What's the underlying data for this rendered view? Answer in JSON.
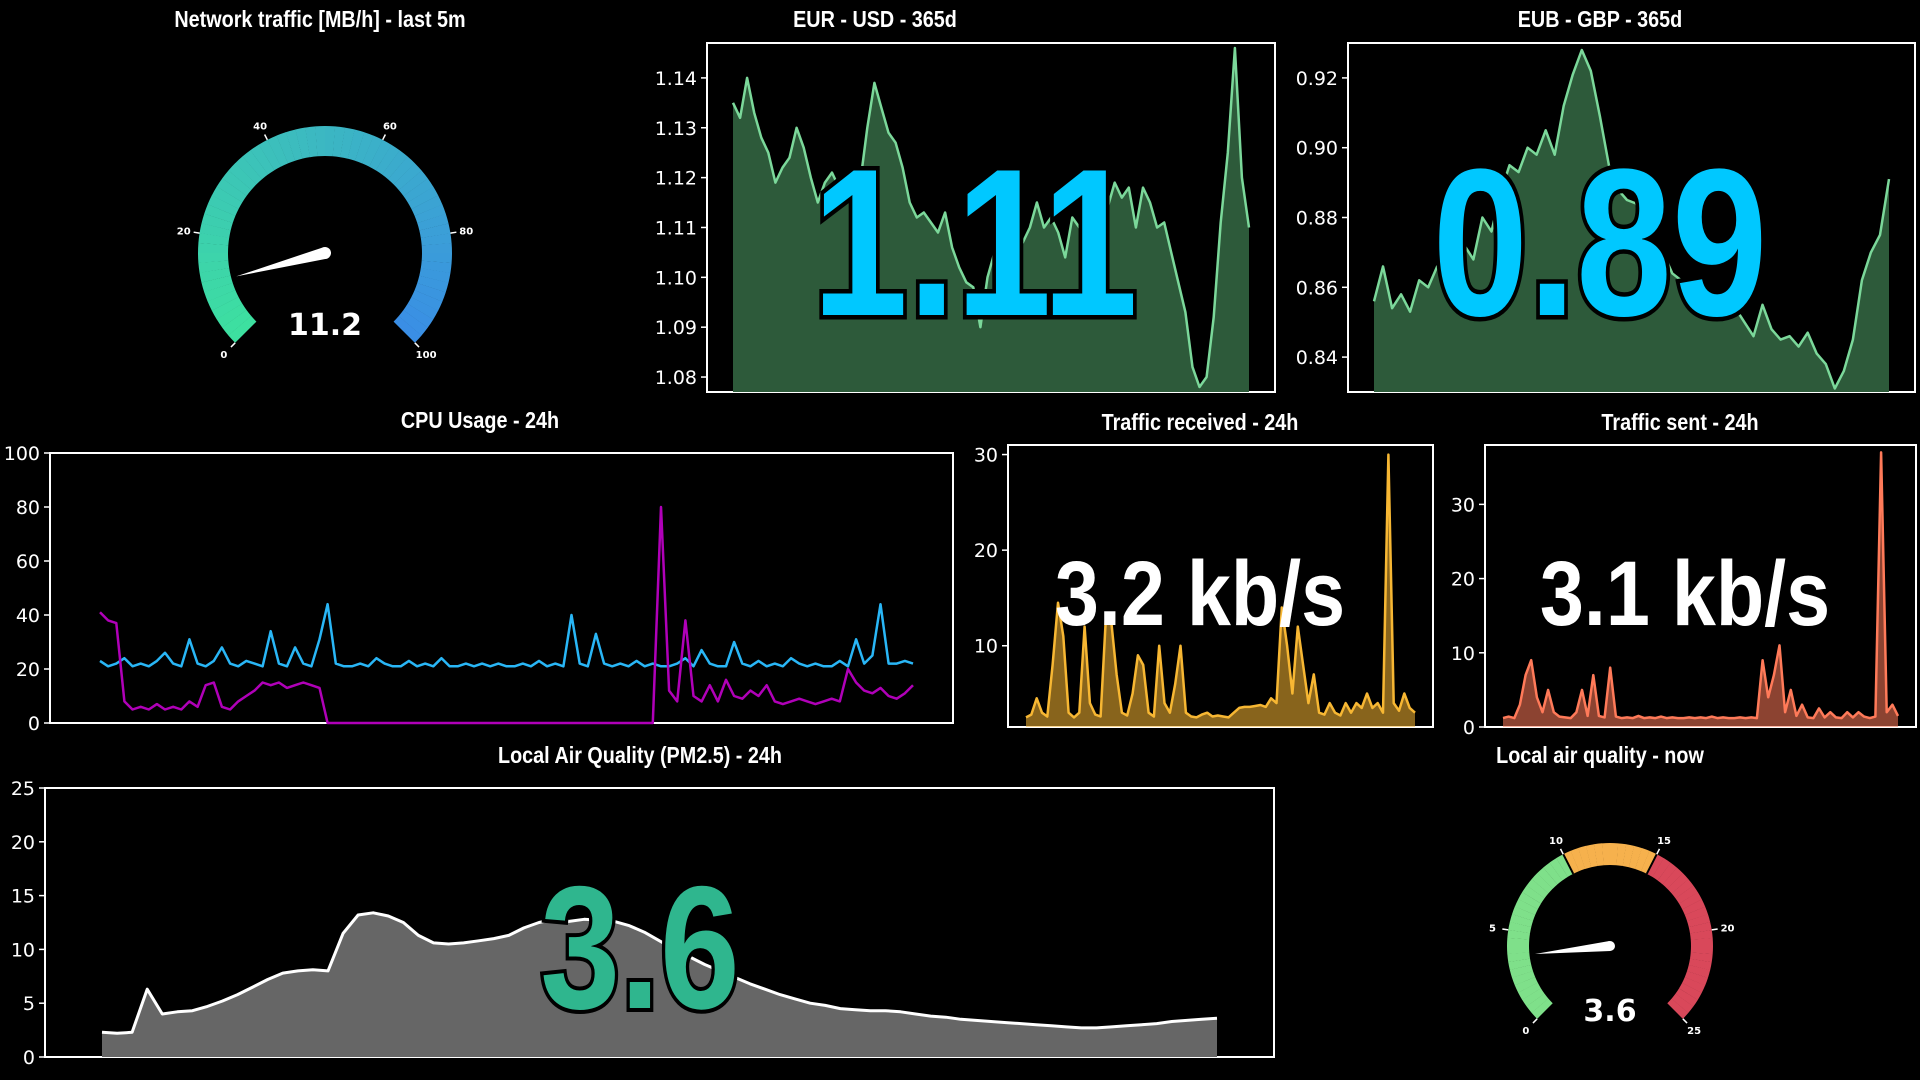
{
  "colors": {
    "background": "#000000",
    "axes": "#ffffff",
    "fx_line": "#7bd89a",
    "fx_fill": "#2d5a3a",
    "fx_value": "#00c8ff",
    "cpu_series_1": "#29b6f6",
    "cpu_series_2": "#b000b8",
    "received_line": "#f7b733",
    "sent_line": "#ff7a59",
    "aq_line": "#ffffff",
    "aq_fill": "#666666",
    "aq_value": "#2fb68e",
    "gauge_traffic_start": "#3de0a0",
    "gauge_traffic_end": "#3a8de6",
    "gauge_aq_green": "#7fe08a",
    "gauge_aq_orange": "#f6b14d",
    "gauge_aq_red": "#d9485a"
  },
  "gauges": {
    "network": {
      "title": "Network traffic [MB/h] - last 5m",
      "value": 11.2,
      "value_label": "11.2",
      "min": 0,
      "max": 100,
      "tick_labels": [
        "0",
        "20",
        "40",
        "60",
        "80",
        "100"
      ]
    },
    "air": {
      "title": "Local air quality - now",
      "value": 3.6,
      "value_label": "3.6",
      "min": 0,
      "max": 25,
      "tick_labels": [
        "0",
        "5",
        "10",
        "15",
        "20",
        "25"
      ],
      "bands": [
        {
          "from": 0,
          "to": 10,
          "color": "#7fe08a"
        },
        {
          "from": 10,
          "to": 15,
          "color": "#f6b14d"
        },
        {
          "from": 15,
          "to": 25,
          "color": "#d9485a"
        }
      ]
    }
  },
  "overlays": {
    "eur_usd": "1.11",
    "eur_gbp": "0.89",
    "received": "3.2 kb/s",
    "sent": "3.1 kb/s",
    "air_quality": "3.6"
  },
  "chart_data": [
    {
      "id": "eur_usd",
      "type": "area",
      "title": "EUR - USD - 365d",
      "ylim": [
        1.077,
        1.147
      ],
      "yticks": [
        1.08,
        1.09,
        1.1,
        1.11,
        1.12,
        1.13,
        1.14
      ],
      "ytick_labels": [
        "1.08",
        "1.09",
        "1.10",
        "1.11",
        "1.12",
        "1.13",
        "1.14"
      ],
      "series": [
        {
          "values": [
            1.135,
            1.132,
            1.14,
            1.133,
            1.128,
            1.125,
            1.119,
            1.122,
            1.124,
            1.13,
            1.126,
            1.12,
            1.115,
            1.119,
            1.121,
            1.118,
            1.12,
            1.117,
            1.119,
            1.13,
            1.139,
            1.134,
            1.129,
            1.127,
            1.122,
            1.115,
            1.112,
            1.113,
            1.111,
            1.109,
            1.113,
            1.106,
            1.102,
            1.099,
            1.098,
            1.09,
            1.1,
            1.105,
            1.112,
            1.108,
            1.111,
            1.107,
            1.11,
            1.115,
            1.11,
            1.112,
            1.109,
            1.104,
            1.112,
            1.11,
            1.108,
            1.112,
            1.109,
            1.114,
            1.119,
            1.116,
            1.118,
            1.11,
            1.118,
            1.115,
            1.11,
            1.111,
            1.105,
            1.099,
            1.093,
            1.082,
            1.078,
            1.08,
            1.092,
            1.111,
            1.125,
            1.146,
            1.12,
            1.11
          ]
        }
      ]
    },
    {
      "id": "eur_gbp",
      "type": "area",
      "title": "EUB - GBP - 365d",
      "ylim": [
        0.83,
        0.93
      ],
      "yticks": [
        0.84,
        0.86,
        0.88,
        0.9,
        0.92
      ],
      "ytick_labels": [
        "0.84",
        "0.86",
        "0.88",
        "0.90",
        "0.92"
      ],
      "series": [
        {
          "values": [
            0.856,
            0.866,
            0.854,
            0.858,
            0.853,
            0.862,
            0.86,
            0.866,
            0.864,
            0.868,
            0.872,
            0.868,
            0.88,
            0.876,
            0.887,
            0.895,
            0.893,
            0.9,
            0.898,
            0.905,
            0.898,
            0.912,
            0.921,
            0.928,
            0.922,
            0.909,
            0.895,
            0.888,
            0.885,
            0.884,
            0.877,
            0.871,
            0.87,
            0.864,
            0.862,
            0.855,
            0.852,
            0.858,
            0.852,
            0.857,
            0.854,
            0.85,
            0.846,
            0.855,
            0.848,
            0.845,
            0.846,
            0.843,
            0.847,
            0.841,
            0.838,
            0.831,
            0.836,
            0.845,
            0.862,
            0.87,
            0.875,
            0.891
          ]
        }
      ]
    },
    {
      "id": "cpu",
      "type": "line",
      "title": "CPU Usage - 24h",
      "ylim": [
        0,
        100
      ],
      "yticks": [
        0,
        20,
        40,
        60,
        80,
        100
      ],
      "ytick_labels": [
        "0",
        "20",
        "40",
        "60",
        "80",
        "100"
      ],
      "series": [
        {
          "values": [
            23,
            21,
            22,
            24,
            21,
            22,
            21,
            23,
            26,
            22,
            21,
            31,
            22,
            21,
            23,
            28,
            22,
            21,
            23,
            22,
            21,
            34,
            22,
            21,
            28,
            22,
            21,
            31,
            44,
            22,
            21,
            21,
            22,
            21,
            24,
            22,
            21,
            21,
            23,
            21,
            22,
            21,
            24,
            21,
            21,
            22,
            21,
            22,
            21,
            22,
            21,
            21,
            22,
            21,
            23,
            21,
            22,
            21,
            40,
            22,
            21,
            33,
            22,
            21,
            22,
            21,
            23,
            21,
            22,
            21,
            21,
            22,
            24,
            21,
            27,
            22,
            21,
            21,
            30,
            22,
            21,
            23,
            21,
            22,
            21,
            24,
            22,
            21,
            22,
            21,
            21,
            23,
            21,
            31,
            22,
            25,
            44,
            22,
            22,
            23,
            22
          ]
        },
        {
          "values": [
            41,
            38,
            37,
            8,
            5,
            6,
            5,
            7,
            5,
            6,
            5,
            8,
            6,
            14,
            15,
            6,
            5,
            8,
            10,
            12,
            15,
            14,
            15,
            13,
            14,
            15,
            14,
            13,
            0,
            0,
            0,
            0,
            0,
            0,
            0,
            0,
            0,
            0,
            0,
            0,
            0,
            0,
            0,
            0,
            0,
            0,
            0,
            0,
            0,
            0,
            0,
            0,
            0,
            0,
            0,
            0,
            0,
            0,
            0,
            0,
            0,
            0,
            0,
            0,
            0,
            0,
            0,
            0,
            0,
            80,
            12,
            8,
            38,
            10,
            8,
            14,
            8,
            16,
            10,
            9,
            12,
            10,
            14,
            8,
            7,
            8,
            9,
            8,
            7,
            8,
            9,
            8,
            20,
            15,
            12,
            11,
            13,
            10,
            9,
            11,
            14
          ]
        }
      ]
    },
    {
      "id": "received",
      "type": "area",
      "title": "Traffic received - 24h",
      "ylim": [
        1.5,
        31
      ],
      "yticks": [
        10,
        20,
        30
      ],
      "ytick_labels": [
        "10",
        "20",
        "30"
      ],
      "series": [
        {
          "values": [
            2.5,
            2.8,
            4.5,
            3,
            2.6,
            8,
            14.5,
            11,
            3,
            2.5,
            3,
            12,
            4,
            2.8,
            2.6,
            13,
            12.5,
            7,
            3,
            2.7,
            5,
            9,
            8,
            3,
            2.6,
            10,
            4,
            3,
            6,
            10,
            3,
            2.6,
            2.5,
            2.8,
            3,
            2.6,
            2.7,
            2.6,
            2.5,
            3,
            3.5,
            3.6,
            3.6,
            3.7,
            3.8,
            3.6,
            4.5,
            4,
            14,
            10,
            5,
            12,
            8,
            4,
            7,
            3,
            2.8,
            4,
            3,
            2.7,
            4,
            3,
            4,
            3.5,
            5,
            3.5,
            4,
            3,
            30,
            4,
            3.2,
            5,
            3.5,
            3
          ]
        }
      ]
    },
    {
      "id": "sent",
      "type": "area",
      "title": "Traffic sent - 24h",
      "ylim": [
        0,
        38
      ],
      "yticks": [
        0,
        10,
        20,
        30
      ],
      "ytick_labels": [
        "0",
        "10",
        "20",
        "30"
      ],
      "series": [
        {
          "values": [
            1.2,
            1.4,
            1.2,
            3,
            7,
            9,
            4,
            2,
            5,
            2,
            1.4,
            1.3,
            1.2,
            2,
            5,
            1.5,
            7,
            1.5,
            1.3,
            8,
            1.4,
            1.2,
            1.3,
            1.2,
            1.5,
            1.2,
            1.3,
            1.2,
            1.4,
            1.2,
            1.3,
            1.2,
            1.2,
            1.3,
            1.2,
            1.3,
            1.2,
            1.4,
            1.2,
            1.3,
            1.2,
            1.2,
            1.3,
            1.2,
            1.3,
            1.2,
            9,
            4,
            7,
            11,
            2,
            5,
            1.5,
            3,
            1.3,
            1.2,
            2.5,
            1.3,
            2,
            1.3,
            1.2,
            2,
            1.3,
            2,
            1.4,
            1.2,
            1.4,
            37,
            2,
            3,
            1.5
          ]
        }
      ]
    },
    {
      "id": "air_quality",
      "type": "area",
      "title": "Local Air Quality (PM2.5) - 24h",
      "ylim": [
        0,
        25
      ],
      "yticks": [
        0,
        5,
        10,
        15,
        20,
        25
      ],
      "ytick_labels": [
        "0",
        "5",
        "10",
        "15",
        "20",
        "25"
      ],
      "series": [
        {
          "values": [
            2.3,
            2.2,
            2.3,
            6.3,
            4.0,
            4.2,
            4.3,
            4.7,
            5.2,
            5.8,
            6.5,
            7.2,
            7.8,
            8.0,
            8.1,
            8.0,
            11.5,
            13.2,
            13.4,
            13.1,
            12.5,
            11.3,
            10.6,
            10.5,
            10.6,
            10.8,
            11.0,
            11.3,
            12.0,
            12.5,
            12.8,
            12.6,
            12.8,
            12.7,
            12.6,
            12.2,
            11.6,
            10.8,
            10.0,
            9.3,
            8.6,
            8.0,
            7.4,
            6.8,
            6.3,
            5.8,
            5.4,
            5.0,
            4.8,
            4.5,
            4.4,
            4.3,
            4.3,
            4.2,
            4.0,
            3.8,
            3.7,
            3.5,
            3.4,
            3.3,
            3.2,
            3.1,
            3.0,
            2.9,
            2.8,
            2.7,
            2.7,
            2.8,
            2.9,
            3.0,
            3.1,
            3.3,
            3.4,
            3.5,
            3.6
          ]
        }
      ]
    }
  ]
}
